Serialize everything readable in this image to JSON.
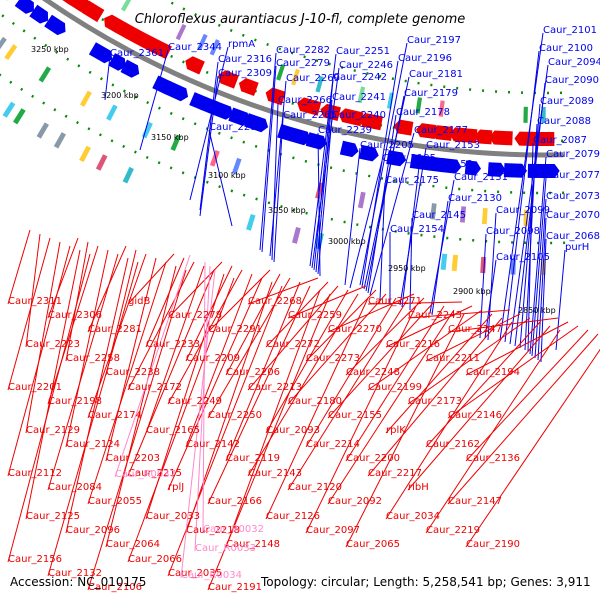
{
  "title": "Chloroflexus aurantiacus J-10-fl, complete genome",
  "accession": "Accession: NC_010175",
  "summary": "Topology: circular; Length: 5,258,541 bp; Genes: 3,911",
  "colors": {
    "forward": "#0000ee",
    "reverse": "#ee0000",
    "rna": "#ff88cc",
    "backbone": "#808080",
    "dots": "#0a8a0a"
  },
  "ticks": [
    "3250 kbp",
    "3200 kbp",
    "3150 kbp",
    "3100 kbp",
    "3050 kbp",
    "3000 kbp",
    "2950 kbp",
    "2900 kbp",
    "2850 kbp"
  ],
  "forward_labels": [
    "Caur_2361",
    "Caur_2344",
    "rpmA",
    "Caur_2316",
    "Caur_2309",
    "Caur_2282",
    "Caur_2279",
    "Caur_2269",
    "Caur_2266",
    "Caur_2265",
    "Caur_2251",
    "Caur_2246",
    "Caur_2242",
    "Caur_2241",
    "Caur_2240",
    "Caur_2239",
    "Caur_2290",
    "Caur_2197",
    "Caur_2196",
    "Caur_2181",
    "Caur_2179",
    "Caur_2178",
    "Caur_2177",
    "Caur_2205",
    "Caur_2195",
    "Caur_2175",
    "Caur_2153",
    "Caur_2152",
    "Caur_2131",
    "Caur_2130",
    "Caur_2145",
    "Caur_2154",
    "Caur_2101",
    "Caur_2100",
    "Caur_2094",
    "Caur_2090",
    "Caur_2089",
    "Caur_2088",
    "Caur_2087",
    "Caur_2079",
    "Caur_2077",
    "Caur_2073",
    "Caur_2070",
    "Caur_2068",
    "Caur_2099",
    "Caur_2098",
    "purH",
    "Caur_2105"
  ],
  "reverse_labels": [
    "Caur_2311",
    "Caur_2306",
    "Caur_2281",
    "gidB",
    "Caur_2278",
    "Caur_2291",
    "Caur_2268",
    "Caur_2259",
    "Caur_2270",
    "Caur_2271",
    "Caur_2243",
    "Caur_2247",
    "Caur_2223",
    "Caur_2258",
    "Caur_2238",
    "Caur_2233",
    "Caur_2209",
    "Caur_2206",
    "Caur_2272",
    "Caur_2273",
    "Caur_2248",
    "Caur_2216",
    "Caur_2211",
    "Caur_2194",
    "Caur_2201",
    "Caur_2198",
    "Caur_2174",
    "Caur_2172",
    "Caur_2249",
    "Caur_2250",
    "Caur_2213",
    "Caur_2180",
    "Caur_2155",
    "Caur_2199",
    "Caur_2173",
    "Caur_2146",
    "Caur_2129",
    "Caur_2124",
    "Caur_2203",
    "Caur_2165",
    "Caur_2142",
    "Caur_2119",
    "Caur_2093",
    "Caur_2214",
    "Caur_2200",
    "rplK",
    "Caur_2162",
    "Caur_2136",
    "Caur_2112",
    "Caur_2084",
    "Caur_2055",
    "Caur_2215",
    "rplJ",
    "Caur_2166",
    "Caur_2143",
    "Caur_2120",
    "Caur_2092",
    "Caur_2217",
    "ribH",
    "Caur_2147",
    "Caur_2125",
    "Caur_2096",
    "Caur_2064",
    "Caur_2033",
    "Caur_2218",
    "Caur_2148",
    "Caur_2126",
    "Caur_2097",
    "Caur_2065",
    "Caur_2034",
    "Caur_2219",
    "Caur_2190",
    "Caur_2156",
    "Caur_2132",
    "Caur_2106",
    "Caur_2066",
    "Caur_2035",
    "Caur_2191"
  ],
  "rna_labels": [
    "Caur_R0037",
    "Caur_R0032",
    "Caur_R0033",
    "Caur_R0034"
  ]
}
